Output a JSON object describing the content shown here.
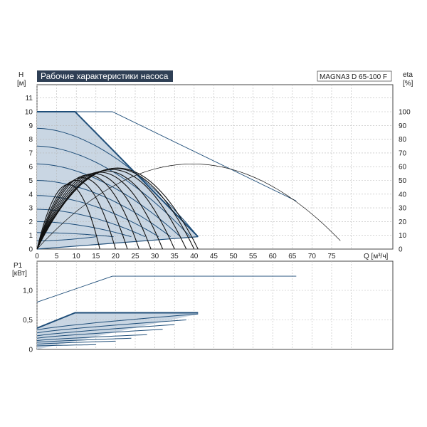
{
  "chart_data": [
    {
      "type": "line",
      "title": "Рабочие характеристики насоса",
      "model": "MAGNA3 D 65-100 F",
      "xlabel": "Q [м³/ч]",
      "ylabel_left": [
        "H",
        "[м]"
      ],
      "ylabel_right": [
        "eta",
        "[%]"
      ],
      "xlim": [
        0,
        84
      ],
      "ylim_left": [
        0,
        12
      ],
      "ylim_right": [
        0,
        120
      ],
      "grid": true,
      "x_ticks": [
        "0",
        "5",
        "10",
        "15",
        "20",
        "25",
        "30",
        "35",
        "40",
        "45",
        "50",
        "55",
        "60",
        "65",
        "70",
        "75"
      ],
      "y_ticks_left": [
        "0",
        "1",
        "2",
        "3",
        "4",
        "5",
        "6",
        "7",
        "8",
        "9",
        "10",
        "11"
      ],
      "y_ticks_right": [
        "0",
        "10",
        "20",
        "30",
        "40",
        "50",
        "60",
        "70",
        "80",
        "90",
        "100"
      ],
      "colors": {
        "envelope": "#1f4e79",
        "fill": "#c9d6e3",
        "curves": "#1f4e79",
        "eta": "#111111",
        "grid": "#b8b8b8"
      },
      "operating_envelope": {
        "x": [
          0,
          9.7,
          41,
          0
        ],
        "y": [
          10,
          10,
          0.9,
          0
        ]
      },
      "max_curve": {
        "x": [
          0,
          19.2,
          66
        ],
        "y": [
          10,
          10,
          3.5
        ]
      },
      "h_curves": [
        {
          "x": [
            0,
            41
          ],
          "y": [
            8.8,
            0.9
          ]
        },
        {
          "x": [
            0,
            39
          ],
          "y": [
            7.5,
            0.9
          ]
        },
        {
          "x": [
            0,
            36.5
          ],
          "y": [
            6.2,
            0.9
          ]
        },
        {
          "x": [
            0,
            34
          ],
          "y": [
            5.0,
            0.9
          ]
        },
        {
          "x": [
            0,
            31
          ],
          "y": [
            3.9,
            0.9
          ]
        },
        {
          "x": [
            0,
            27.5
          ],
          "y": [
            2.9,
            0.9
          ]
        },
        {
          "x": [
            0,
            24
          ],
          "y": [
            2.0,
            0.9
          ]
        },
        {
          "x": [
            0,
            19.5
          ],
          "y": [
            1.2,
            0.9
          ]
        },
        {
          "x": [
            0,
            15
          ],
          "y": [
            0.6,
            0.9
          ]
        }
      ],
      "eta_curves": [
        {
          "x_end": 41,
          "peak": 59
        },
        {
          "x_end": 40,
          "peak": 58.8
        },
        {
          "x_end": 38,
          "peak": 58
        },
        {
          "x_end": 35,
          "peak": 57
        },
        {
          "x_end": 32,
          "peak": 56
        },
        {
          "x_end": 29,
          "peak": 55
        },
        {
          "x_end": 26,
          "peak": 54
        },
        {
          "x_end": 23,
          "peak": 52
        },
        {
          "x_end": 20,
          "peak": 50
        },
        {
          "x_end": 16,
          "peak": 47
        }
      ],
      "eta_max_curve": {
        "x_end": 66,
        "peak": 62
      }
    },
    {
      "type": "line",
      "ylabel": [
        "P1",
        "[кВт]"
      ],
      "xlim": [
        0,
        84
      ],
      "ylim": [
        0,
        1.4
      ],
      "y_ticks": [
        "0",
        "0,5",
        "1,0"
      ],
      "grid": true,
      "max_power": {
        "x": [
          0,
          19.2,
          66
        ],
        "y": [
          0.8,
          1.24,
          1.24
        ]
      },
      "power_envelope": {
        "x": [
          0,
          9.7,
          41,
          41,
          0
        ],
        "y": [
          0.36,
          0.62,
          0.62,
          0.6,
          0.0
        ]
      },
      "p_curves": [
        {
          "x": [
            0,
            41
          ],
          "y": [
            0.33,
            0.6
          ]
        },
        {
          "x": [
            0,
            38
          ],
          "y": [
            0.28,
            0.5
          ]
        },
        {
          "x": [
            0,
            35
          ],
          "y": [
            0.23,
            0.42
          ]
        },
        {
          "x": [
            0,
            32
          ],
          "y": [
            0.19,
            0.34
          ]
        },
        {
          "x": [
            0,
            28
          ],
          "y": [
            0.15,
            0.25
          ]
        },
        {
          "x": [
            0,
            24
          ],
          "y": [
            0.12,
            0.19
          ]
        },
        {
          "x": [
            0,
            20
          ],
          "y": [
            0.09,
            0.14
          ]
        },
        {
          "x": [
            0,
            15
          ],
          "y": [
            0.06,
            0.08
          ]
        }
      ]
    }
  ]
}
